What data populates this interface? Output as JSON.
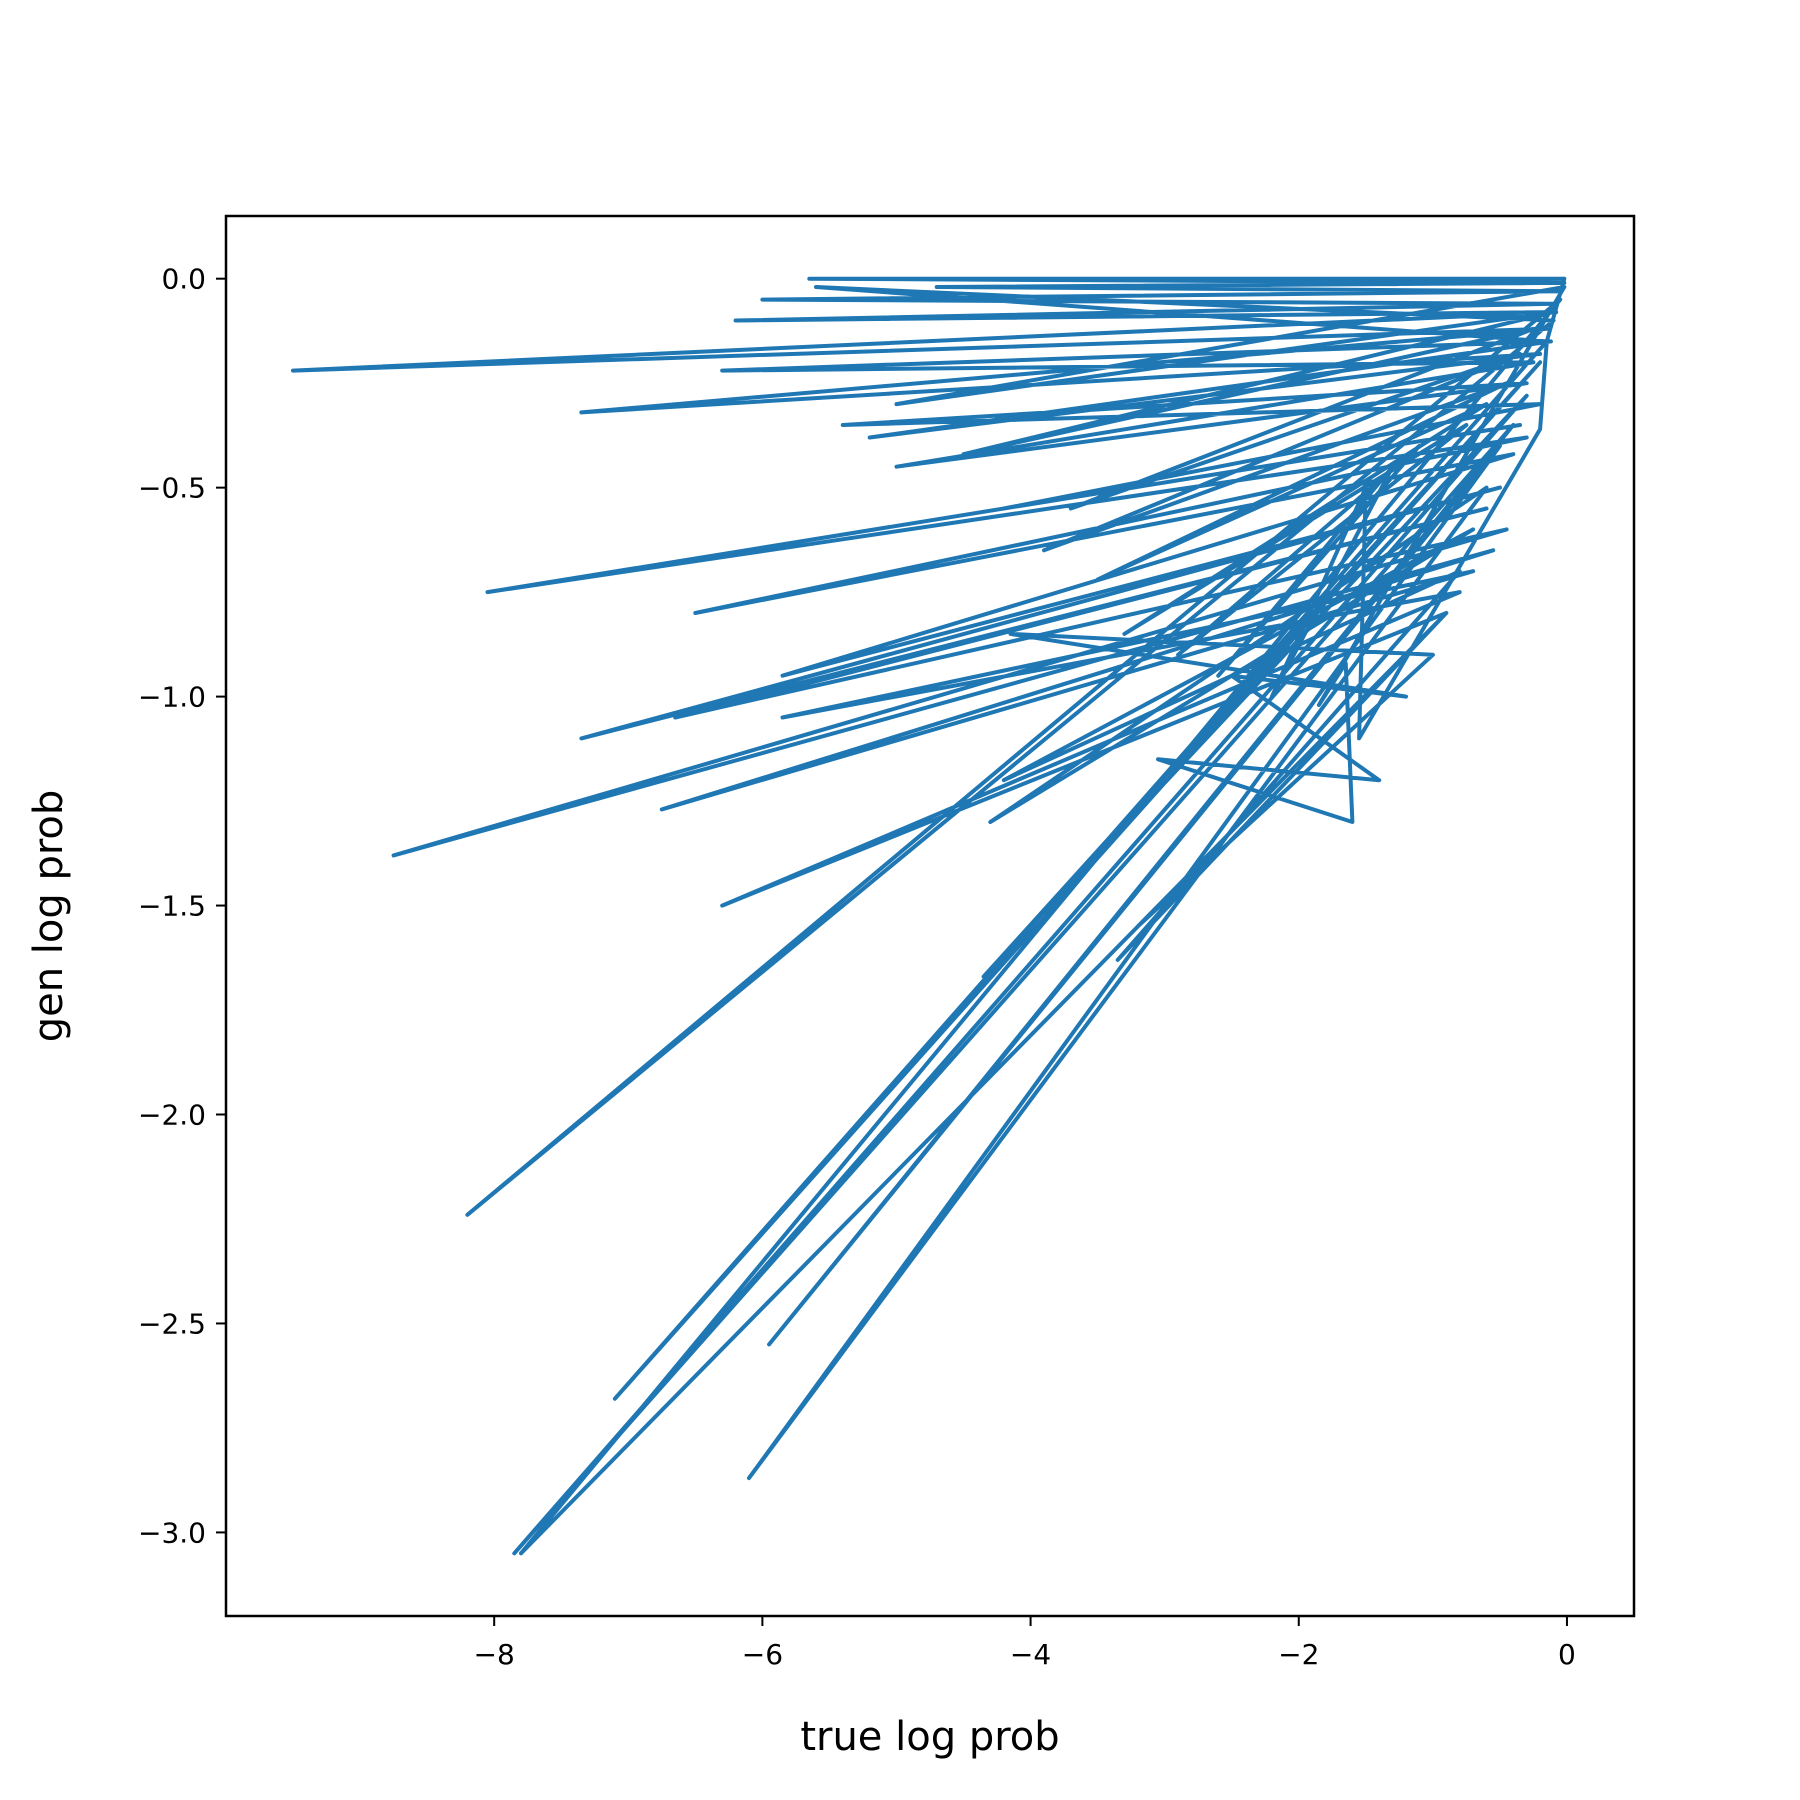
{
  "chart_data": {
    "type": "line",
    "title": "",
    "xlabel": "true log prob",
    "ylabel": "gen log prob",
    "xlim": [
      -10,
      0.5
    ],
    "ylim": [
      -3.2,
      0.15
    ],
    "xticks": [
      -8,
      -6,
      -4,
      -2,
      0
    ],
    "yticks": [
      0.0,
      -0.5,
      -1.0,
      -1.5,
      -2.0,
      -2.5,
      -3.0
    ],
    "xtick_labels": [
      "−8",
      "−6",
      "−4",
      "−2",
      "0"
    ],
    "ytick_labels": [
      "0.0",
      "−0.5",
      "−1.0",
      "−1.5",
      "−2.0",
      "−2.5",
      "−3.0"
    ],
    "grid": false,
    "legend": "none",
    "series": [
      {
        "color": "#1f77b4",
        "x": [
          -0.02,
          -5.65,
          -0.02,
          -4.7,
          -0.05,
          -6.0,
          -0.1,
          -6.2,
          -0.08,
          -9.5,
          -0.15,
          -7.35,
          -0.2,
          -5.2,
          -0.12,
          -6.3,
          -0.25,
          -5.0,
          -0.3,
          -5.4,
          -0.2,
          -4.2,
          -0.35,
          -8.05,
          -0.3,
          -6.5,
          -0.4,
          -5.85,
          -0.5,
          -7.35,
          -0.6,
          -6.65,
          -0.45,
          -8.75,
          -0.55,
          -6.75,
          -0.7,
          -5.85,
          -0.8,
          -6.3,
          -0.9,
          -7.8,
          -0.05,
          -8.2,
          -0.1,
          -5.6,
          -0.15,
          -7.1,
          -0.2,
          -4.35,
          -0.3,
          -7.85,
          -0.4,
          -5.95,
          -0.5,
          -6.1,
          -0.6,
          -4.3,
          -0.7,
          -4.2,
          -0.8,
          -3.35,
          -0.9,
          -3.2,
          -1.0,
          -4.15,
          -1.2,
          -2.5,
          -1.4,
          -3.05,
          -1.6,
          -1.65,
          -1.85,
          -0.02,
          -5.0,
          -0.1,
          -4.5,
          -0.25,
          -3.7,
          -0.35,
          -3.9,
          -0.45,
          -3.5,
          -0.6,
          -3.3,
          -0.75,
          -2.9,
          -1.1,
          -2.6,
          -1.3,
          -2.2,
          -1.5,
          -1.55,
          -0.2,
          -0.15,
          -0.02
        ],
        "y": [
          0.0,
          0.0,
          -0.01,
          -0.02,
          -0.03,
          -0.05,
          -0.06,
          -0.1,
          -0.08,
          -0.22,
          -0.12,
          -0.32,
          -0.18,
          -0.38,
          -0.15,
          -0.22,
          -0.2,
          -0.45,
          -0.25,
          -0.35,
          -0.3,
          -0.55,
          -0.35,
          -0.75,
          -0.38,
          -0.8,
          -0.42,
          -0.95,
          -0.5,
          -1.1,
          -0.55,
          -1.05,
          -0.6,
          -1.38,
          -0.65,
          -1.27,
          -0.7,
          -1.05,
          -0.75,
          -1.5,
          -0.8,
          -3.05,
          -0.05,
          -2.24,
          -0.1,
          -0.02,
          -0.15,
          -2.68,
          -0.2,
          -1.67,
          -0.28,
          -3.05,
          -0.35,
          -2.55,
          -0.4,
          -2.87,
          -0.5,
          -1.3,
          -0.6,
          -1.2,
          -0.7,
          -1.63,
          -0.8,
          -1.55,
          -0.9,
          -0.85,
          -1.0,
          -0.95,
          -1.2,
          -1.15,
          -1.3,
          -0.92,
          -1.02,
          -0.02,
          -0.3,
          -0.08,
          -0.42,
          -0.12,
          -0.55,
          -0.18,
          -0.65,
          -0.25,
          -0.72,
          -0.3,
          -0.85,
          -0.35,
          -0.9,
          -0.4,
          -0.95,
          -0.45,
          -1.0,
          -0.5,
          -1.1,
          -0.36,
          -0.15,
          0.0
        ]
      }
    ]
  }
}
